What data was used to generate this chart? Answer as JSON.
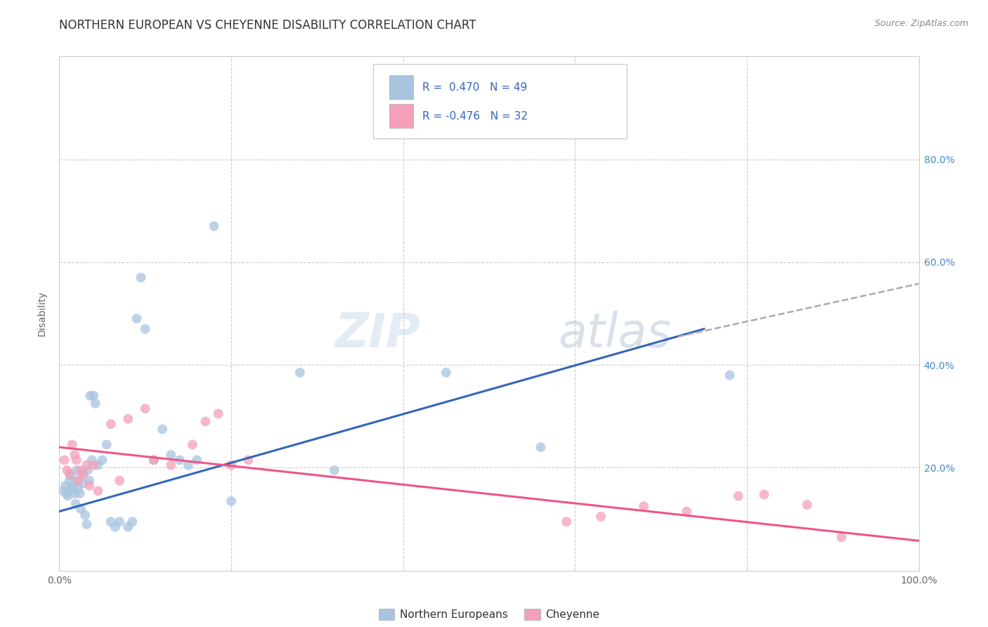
{
  "title": "NORTHERN EUROPEAN VS CHEYENNE DISABILITY CORRELATION CHART",
  "source": "Source: ZipAtlas.com",
  "ylabel": "Disability",
  "xlim": [
    0,
    1
  ],
  "ylim": [
    0,
    1
  ],
  "blue_color": "#A8C4E0",
  "pink_color": "#F4A0B8",
  "blue_line_color": "#3366BB",
  "pink_line_color": "#EE5588",
  "dashed_line_color": "#AAAAAA",
  "legend_text_color": "#3366BB",
  "legend_R_blue": "R =  0.470",
  "legend_N_blue": "N = 49",
  "legend_R_pink": "R = -0.476",
  "legend_N_pink": "N = 32",
  "legend_label_blue": "Northern Europeans",
  "legend_label_pink": "Cheyenne",
  "watermark_zip": "ZIP",
  "watermark_atlas": "atlas",
  "title_fontsize": 12,
  "source_fontsize": 9,
  "blue_points_x": [
    0.005,
    0.007,
    0.008,
    0.01,
    0.012,
    0.013,
    0.015,
    0.016,
    0.018,
    0.019,
    0.02,
    0.021,
    0.022,
    0.024,
    0.025,
    0.027,
    0.028,
    0.03,
    0.032,
    0.033,
    0.035,
    0.036,
    0.038,
    0.04,
    0.042,
    0.045,
    0.05,
    0.055,
    0.06,
    0.065,
    0.07,
    0.08,
    0.085,
    0.09,
    0.095,
    0.1,
    0.11,
    0.12,
    0.13,
    0.14,
    0.15,
    0.16,
    0.18,
    0.2,
    0.28,
    0.32,
    0.45,
    0.56,
    0.78
  ],
  "blue_points_y": [
    0.155,
    0.165,
    0.15,
    0.145,
    0.175,
    0.185,
    0.165,
    0.158,
    0.15,
    0.13,
    0.195,
    0.175,
    0.16,
    0.15,
    0.12,
    0.188,
    0.17,
    0.108,
    0.09,
    0.195,
    0.175,
    0.34,
    0.215,
    0.34,
    0.325,
    0.205,
    0.215,
    0.245,
    0.095,
    0.085,
    0.095,
    0.085,
    0.095,
    0.49,
    0.57,
    0.47,
    0.215,
    0.275,
    0.225,
    0.215,
    0.205,
    0.215,
    0.67,
    0.135,
    0.385,
    0.195,
    0.385,
    0.24,
    0.38
  ],
  "pink_points_x": [
    0.006,
    0.009,
    0.012,
    0.015,
    0.018,
    0.02,
    0.022,
    0.025,
    0.028,
    0.032,
    0.035,
    0.04,
    0.045,
    0.06,
    0.07,
    0.08,
    0.1,
    0.11,
    0.13,
    0.155,
    0.17,
    0.185,
    0.2,
    0.22,
    0.59,
    0.63,
    0.68,
    0.73,
    0.79,
    0.82,
    0.87,
    0.91
  ],
  "pink_points_y": [
    0.215,
    0.195,
    0.188,
    0.245,
    0.225,
    0.215,
    0.175,
    0.195,
    0.188,
    0.205,
    0.165,
    0.205,
    0.155,
    0.285,
    0.175,
    0.295,
    0.315,
    0.215,
    0.205,
    0.245,
    0.29,
    0.305,
    0.205,
    0.215,
    0.095,
    0.105,
    0.125,
    0.115,
    0.145,
    0.148,
    0.128,
    0.065
  ],
  "blue_line_x": [
    0.0,
    0.75
  ],
  "blue_line_y": [
    0.115,
    0.47
  ],
  "pink_line_x": [
    0.0,
    1.0
  ],
  "pink_line_y": [
    0.24,
    0.058
  ],
  "dashed_line_x": [
    0.72,
    1.0
  ],
  "dashed_line_y": [
    0.455,
    0.558
  ]
}
